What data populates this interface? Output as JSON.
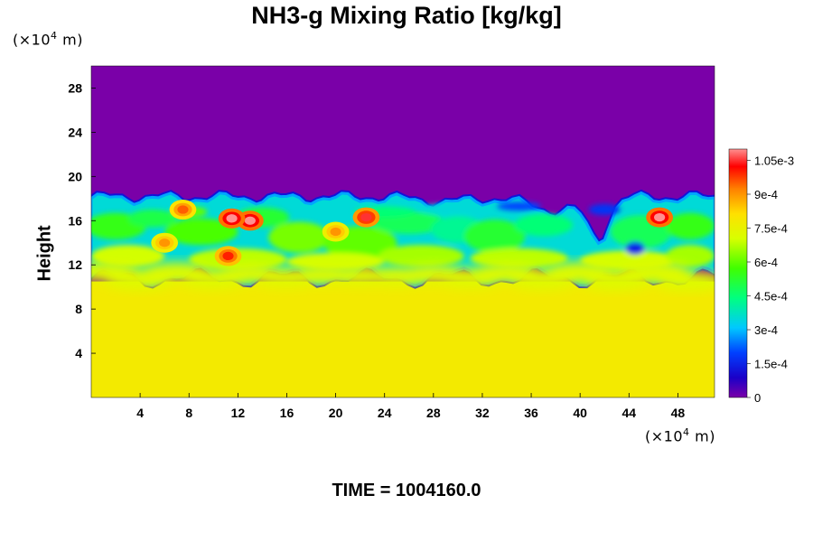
{
  "chart_data": {
    "type": "heatmap",
    "title": "NH3-g Mixing Ratio [kg/kg]",
    "ylabel": "Height",
    "xlabel": "",
    "x_unit": "(×10",
    "x_unit_exp": "4",
    "x_unit_tail": " m)",
    "y_unit": "(×10",
    "y_unit_exp": "4",
    "y_unit_tail": " m)",
    "xlim": [
      0,
      51
    ],
    "ylim": [
      0,
      30
    ],
    "x_ticks": [
      4,
      8,
      12,
      16,
      20,
      24,
      28,
      32,
      36,
      40,
      44,
      48
    ],
    "y_ticks": [
      4,
      8,
      12,
      16,
      20,
      24,
      28
    ],
    "colorbar": {
      "min": 0,
      "max": 0.0011,
      "tick_values": [
        0,
        0.00015,
        0.0003,
        0.00045,
        0.0006,
        0.00075,
        0.0009,
        0.00105
      ],
      "tick_labels": [
        "0",
        "1.5e-4",
        "3e-4",
        "4.5e-4",
        "6e-4",
        "7.5e-4",
        "9e-4",
        "1.05e-3"
      ]
    },
    "field": {
      "lower_layer_value": 0.00078,
      "lower_layer_top": 10.5,
      "upper_layer_value": 0,
      "upper_layer_base": 17.8,
      "mixing_band": [
        11,
        18
      ],
      "peak_patches": [
        {
          "x": 13,
          "y": 16,
          "value": 0.0011
        },
        {
          "x": 11.5,
          "y": 16.2,
          "value": 0.0011
        },
        {
          "x": 11.2,
          "y": 12.8,
          "value": 0.001
        },
        {
          "x": 22.5,
          "y": 16.3,
          "value": 0.00105
        },
        {
          "x": 7.5,
          "y": 17,
          "value": 0.00095
        },
        {
          "x": 20,
          "y": 15,
          "value": 0.0009
        },
        {
          "x": 46.5,
          "y": 16.3,
          "value": 0.0011
        },
        {
          "x": 6,
          "y": 14,
          "value": 0.0009
        }
      ]
    },
    "grid": false
  },
  "footer": {
    "time_label": "TIME = ",
    "time_value": "1004160.0"
  }
}
